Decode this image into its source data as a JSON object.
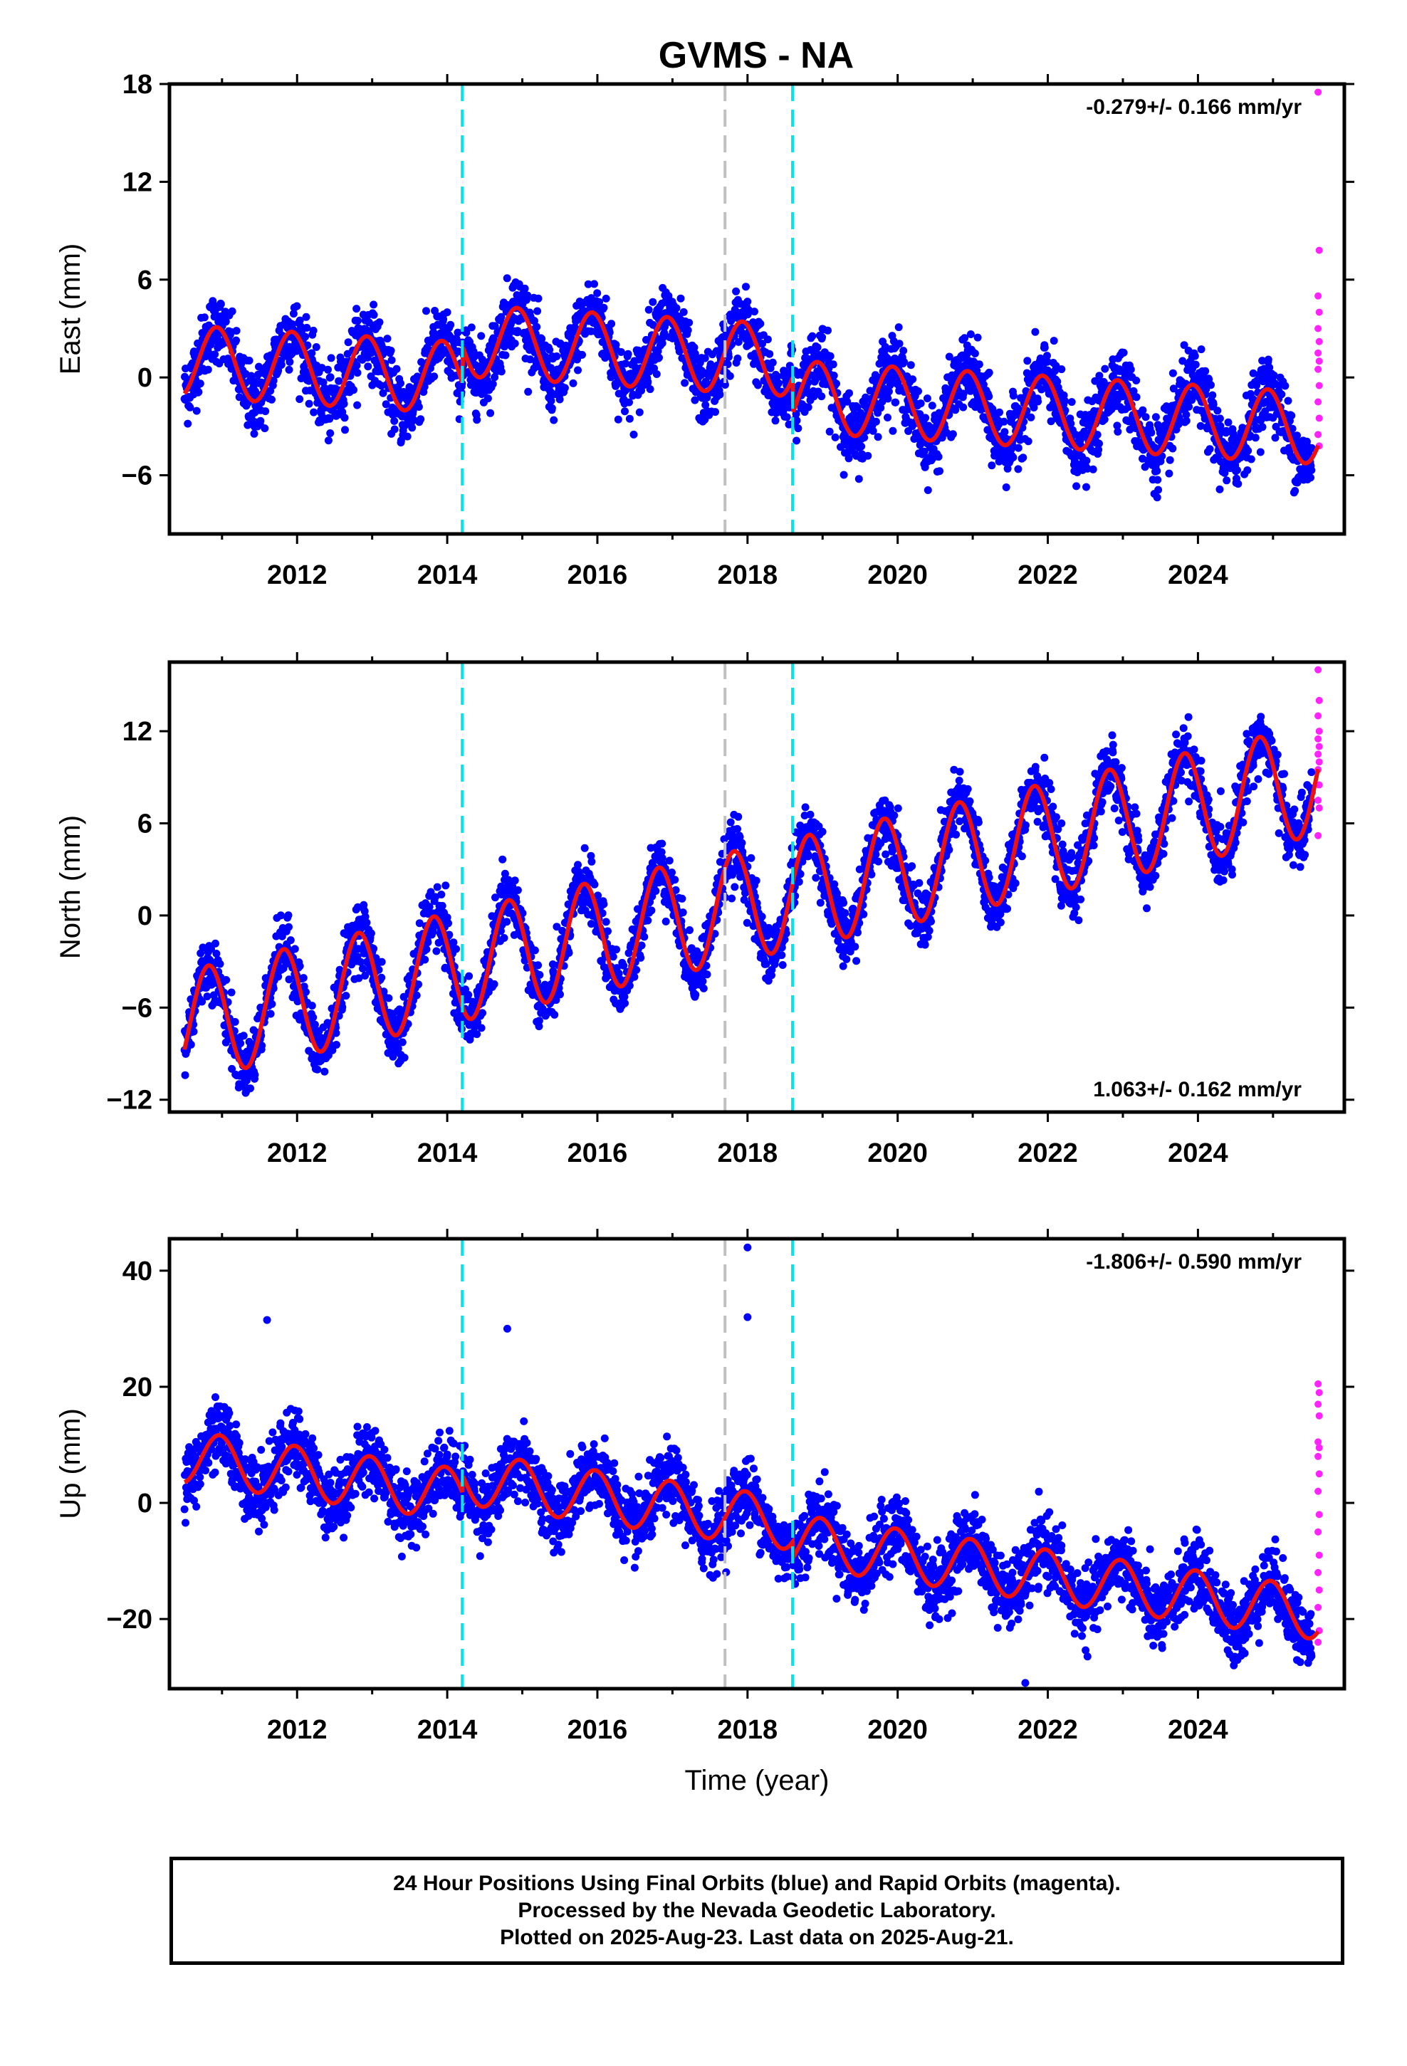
{
  "title": "GVMS - NA",
  "colors": {
    "final": "#0000ff",
    "rapid": "#ff22ff",
    "model": "#ee1111",
    "equipment": "#00e5ee",
    "other": "#c0c0c0"
  },
  "chart_data": [
    {
      "type": "scatter",
      "name": "east",
      "ylabel": "East (mm)",
      "xlim": [
        2010.3,
        2025.95
      ],
      "ylim": [
        -9.6,
        18.0
      ],
      "yticks": [
        -6,
        0,
        6,
        12,
        18
      ],
      "xticks": [
        2012,
        2014,
        2016,
        2018,
        2020,
        2022,
        2024
      ],
      "rate_text": "-0.279+/- 0.166 mm/yr",
      "rate_position": "top-right",
      "steps": [
        {
          "x": 2014.2,
          "kind": "equipment"
        },
        {
          "x": 2017.7,
          "kind": "other"
        },
        {
          "x": 2018.6,
          "kind": "equipment"
        }
      ],
      "model": {
        "start": 2010.5,
        "end": 2025.6,
        "offset": 1.0,
        "rate": -0.279,
        "annual_amp": 2.2,
        "annual_phase": 2010.68,
        "offsets": [
          {
            "x": 2014.2,
            "jump": 2.3
          },
          {
            "x": 2018.6,
            "jump": -2.2
          }
        ],
        "noise": 1.5
      },
      "rapid_y": [
        17.5,
        7.8,
        5.0,
        4.0,
        3.0,
        2.2,
        1.5,
        1.0,
        0.5,
        -0.5,
        -1.5,
        -2.5,
        -3.5,
        -4.2
      ]
    },
    {
      "type": "scatter",
      "name": "north",
      "ylabel": "North (mm)",
      "xlim": [
        2010.3,
        2025.95
      ],
      "ylim": [
        -12.8,
        16.5
      ],
      "yticks": [
        -12,
        -6,
        0,
        6,
        12
      ],
      "xticks": [
        2012,
        2014,
        2016,
        2018,
        2020,
        2022,
        2024
      ],
      "rate_text": "1.063+/- 0.162 mm/yr",
      "rate_position": "bottom-right",
      "steps": [
        {
          "x": 2014.2,
          "kind": "equipment"
        },
        {
          "x": 2017.7,
          "kind": "other"
        },
        {
          "x": 2018.6,
          "kind": "equipment"
        }
      ],
      "model": {
        "start": 2010.5,
        "end": 2025.6,
        "offset": -7.2,
        "rate": 1.063,
        "annual_amp": 3.6,
        "annual_phase": 2010.57,
        "offsets": [],
        "noise": 1.4
      },
      "rapid_y": [
        16.0,
        14.0,
        13.0,
        12.0,
        11.5,
        11.0,
        10.5,
        10.0,
        9.5,
        8.5,
        7.5,
        7.0,
        5.2
      ]
    },
    {
      "type": "scatter",
      "name": "up",
      "ylabel": "Up (mm)",
      "xlabel": "Time (year)",
      "xlim": [
        2010.3,
        2025.95
      ],
      "ylim": [
        -32.0,
        45.5
      ],
      "yticks": [
        -20,
        0,
        20,
        40
      ],
      "xticks": [
        2012,
        2014,
        2016,
        2018,
        2020,
        2022,
        2024
      ],
      "rate_text": "-1.806+/- 0.590 mm/yr",
      "rate_position": "top-right",
      "steps": [
        {
          "x": 2014.2,
          "kind": "equipment"
        },
        {
          "x": 2017.7,
          "kind": "other"
        },
        {
          "x": 2018.6,
          "kind": "equipment"
        }
      ],
      "model": {
        "start": 2010.5,
        "end": 2025.6,
        "offset": 8.0,
        "rate": -1.806,
        "annual_amp": 4.5,
        "annual_phase": 2010.72,
        "offsets": [
          {
            "x": 2014.2,
            "jump": 3.0
          },
          {
            "x": 2018.6,
            "jump": -2.8
          }
        ],
        "noise": 4.2
      },
      "outliers": [
        {
          "x": 2018.0,
          "y": 44.0
        },
        {
          "x": 2018.0,
          "y": 32.0
        },
        {
          "x": 2014.8,
          "y": 30.0
        },
        {
          "x": 2011.6,
          "y": 31.5
        },
        {
          "x": 2021.7,
          "y": -31.0
        }
      ],
      "rapid_y": [
        20.5,
        19.0,
        17.0,
        15.0,
        10.5,
        9.5,
        8.0,
        5.0,
        2.0,
        -2.0,
        -5.0,
        -9.0,
        -12.0,
        -15.0,
        -18.0,
        -22.0,
        -24.0
      ]
    }
  ],
  "footer": {
    "line1": "24 Hour Positions Using Final Orbits (blue) and Rapid Orbits (magenta).",
    "line2": "Processed by the Nevada Geodetic Laboratory.",
    "line3": "Plotted on 2025-Aug-23. Last data on 2025-Aug-21."
  }
}
